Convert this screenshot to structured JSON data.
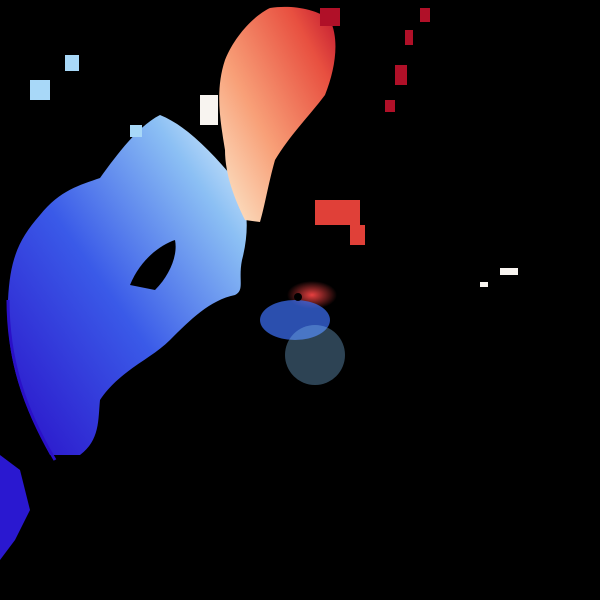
{
  "image": {
    "kind": "doppler-radar-velocity-scan",
    "background_color": "#000000",
    "colors": {
      "inbound_deep": "#2a10c8",
      "inbound_mid": "#3a5ae8",
      "inbound_light": "#a8d8f8",
      "near_zero": "#f8f0e0",
      "outbound_light": "#f8b088",
      "outbound_mid": "#e86040",
      "outbound_deep": "#b01028"
    }
  }
}
